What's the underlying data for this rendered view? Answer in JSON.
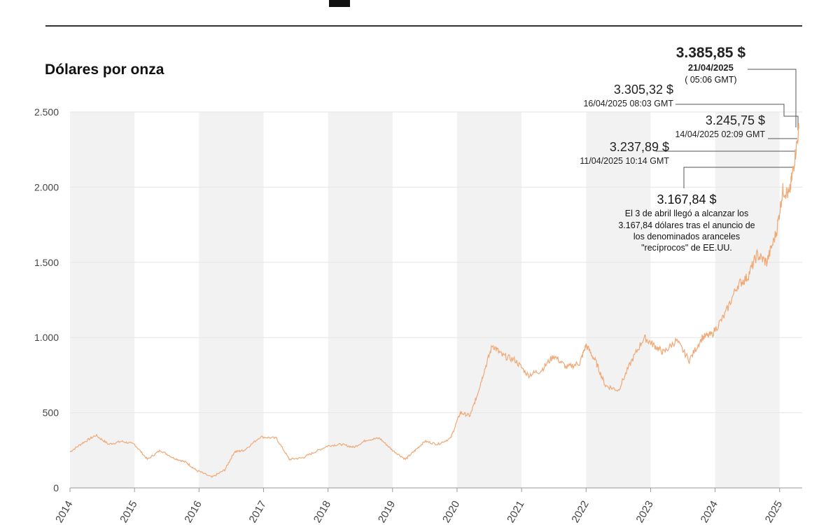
{
  "ylabel": "Dólares por onza",
  "colors": {
    "line": "#f0a875",
    "band": "#f2f2f2",
    "grid": "#e6e6e6",
    "axis": "#999999",
    "rule": "#333333",
    "leader": "#555555"
  },
  "annotations": {
    "a1": {
      "price": "3.385,85 $",
      "date": "21/04/2025",
      "time": "( 05:06 GMT)"
    },
    "a2": {
      "price": "3.305,32 $",
      "date": "16/04/2025 08:03 GMT"
    },
    "a3": {
      "price": "3.245,75 $",
      "date": "14/04/2025 02:09 GMT"
    },
    "a4": {
      "price": "3.237,89 $",
      "date": "11/04/2025 10:14 GMT"
    },
    "a5": {
      "price": "3.167,84 $",
      "note": "El 3 de abril llegó a alcanzar los 3.167,84 dólares tras el anuncio de los denominados aranceles \"recíprocos\" de EE.UU."
    }
  },
  "chart_data": {
    "type": "line",
    "ylabel": "Dólares por onza",
    "ylim": [
      0,
      2500
    ],
    "yticks": [
      0,
      500,
      1000,
      1500,
      2000,
      2500
    ],
    "ytick_labels": [
      "0",
      "500",
      "1.000",
      "1.500",
      "2.000",
      "2.500"
    ],
    "xlim": [
      2014,
      2025.35
    ],
    "xticks": [
      2014,
      2015,
      2016,
      2017,
      2018,
      2019,
      2020,
      2021,
      2022,
      2023,
      2024,
      2025
    ],
    "grid": true,
    "x": [
      2014.0,
      2014.2,
      2014.4,
      2014.6,
      2014.8,
      2015.0,
      2015.2,
      2015.4,
      2015.6,
      2015.8,
      2015.95,
      2016.2,
      2016.4,
      2016.55,
      2016.7,
      2016.95,
      2017.2,
      2017.4,
      2017.6,
      2017.8,
      2018.0,
      2018.2,
      2018.4,
      2018.6,
      2018.8,
      2019.0,
      2019.2,
      2019.35,
      2019.5,
      2019.7,
      2019.9,
      2020.05,
      2020.2,
      2020.3,
      2020.4,
      2020.55,
      2020.7,
      2020.9,
      2021.1,
      2021.3,
      2021.5,
      2021.7,
      2021.9,
      2022.0,
      2022.15,
      2022.3,
      2022.5,
      2022.7,
      2022.9,
      2023.05,
      2023.2,
      2023.4,
      2023.6,
      2023.8,
      2023.95,
      2024.15,
      2024.35,
      2024.5,
      2024.65,
      2024.8,
      2024.95,
      2025.05,
      2025.15,
      2025.22,
      2025.3
    ],
    "y": [
      240,
      300,
      350,
      290,
      310,
      290,
      190,
      250,
      200,
      170,
      120,
      70,
      120,
      240,
      250,
      340,
      330,
      190,
      200,
      240,
      280,
      290,
      270,
      320,
      330,
      250,
      190,
      250,
      310,
      290,
      330,
      500,
      480,
      600,
      750,
      950,
      880,
      850,
      750,
      780,
      880,
      800,
      830,
      950,
      840,
      680,
      650,
      840,
      1000,
      950,
      900,
      980,
      850,
      1000,
      1020,
      1150,
      1350,
      1400,
      1550,
      1500,
      1700,
      1980,
      1950,
      2150,
      2390
    ],
    "annotations": [
      {
        "price": "3.385,85 $",
        "date": "21/04/2025",
        "time": "( 05:06 GMT)"
      },
      {
        "price": "3.305,32 $",
        "date": "16/04/2025 08:03 GMT"
      },
      {
        "price": "3.245,75 $",
        "date": "14/04/2025 02:09 GMT"
      },
      {
        "price": "3.237,89 $",
        "date": "11/04/2025 10:14 GMT"
      },
      {
        "price": "3.167,84 $",
        "note": "El 3 de abril llegó a alcanzar los 3.167,84 dólares tras el anuncio de los denominados aranceles \"recíprocos\" de EE.UU."
      }
    ]
  }
}
